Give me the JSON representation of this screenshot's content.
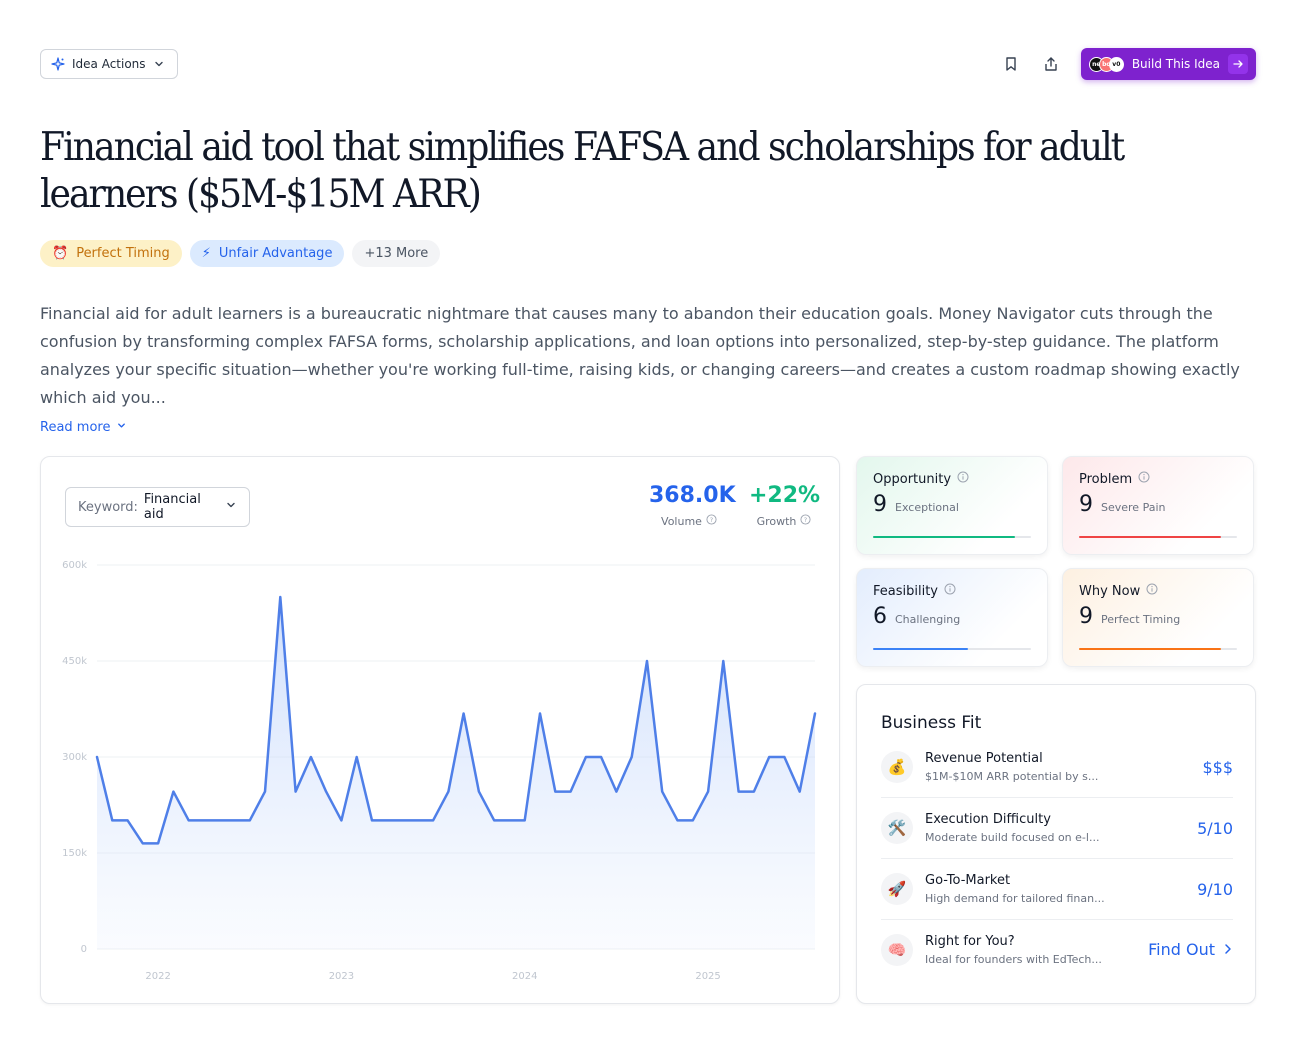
{
  "toolbar": {
    "idea_actions_label": "Idea Actions",
    "build_label": "Build This Idea",
    "build_logos": [
      "ne",
      "bo",
      "v0"
    ]
  },
  "title": "Financial aid tool that simplifies FAFSA and scholarships for adult learners ($5M-$15M ARR)",
  "tags": [
    {
      "icon": "⏰",
      "label": "Perfect Timing"
    },
    {
      "icon": "⚡",
      "label": "Unfair Advantage"
    },
    {
      "label": "+13 More"
    }
  ],
  "description": "Financial aid for adult learners is a bureaucratic nightmare that causes many to abandon their education goals. Money Navigator cuts through the confusion by transforming complex FAFSA forms, scholarship applications, and loan options into personalized, step-by-step guidance. The platform analyzes your specific situation—whether you're working full-time, raising kids, or changing careers—and creates a custom roadmap showing exactly which aid you...",
  "read_more": "Read more",
  "keyword": {
    "label": "Keyword:",
    "value": "Financial aid"
  },
  "stats": {
    "volume": {
      "value": "368.0K",
      "label": "Volume"
    },
    "growth": {
      "value": "+22%",
      "label": "Growth"
    }
  },
  "chart_data": {
    "type": "area",
    "title": "",
    "xlabel": "",
    "ylabel": "",
    "y_ticks": [
      "0",
      "150k",
      "300k",
      "450k",
      "600k"
    ],
    "ylim": [
      0,
      600000
    ],
    "x_ticks": [
      "2022",
      "2023",
      "2024",
      "2025"
    ],
    "x_tick_positions": [
      4,
      16,
      28,
      40
    ],
    "series": [
      {
        "values": [
          300000,
          201000,
          201000,
          165000,
          165000,
          246000,
          201000,
          201000,
          201000,
          201000,
          201000,
          246000,
          550000,
          246000,
          300000,
          246000,
          201000,
          300000,
          201000,
          201000,
          201000,
          201000,
          201000,
          246000,
          368000,
          246000,
          201000,
          201000,
          201000,
          368000,
          246000,
          246000,
          300000,
          300000,
          246000,
          300000,
          450000,
          246000,
          201000,
          201000,
          246000,
          450000,
          246000,
          246000,
          300000,
          300000,
          246000,
          368000
        ],
        "color": "#4f7fe8"
      }
    ],
    "grid": true
  },
  "scores": {
    "opportunity": {
      "title": "Opportunity",
      "value": "9",
      "word": "Exceptional",
      "fraction": 0.9,
      "color": "#10b981"
    },
    "problem": {
      "title": "Problem",
      "value": "9",
      "word": "Severe Pain",
      "fraction": 0.9,
      "color": "#ef4444"
    },
    "feasibility": {
      "title": "Feasibility",
      "value": "6",
      "word": "Challenging",
      "fraction": 0.6,
      "color": "#3b82f6"
    },
    "why_now": {
      "title": "Why Now",
      "value": "9",
      "word": "Perfect Timing",
      "fraction": 0.9,
      "color": "#f97316"
    }
  },
  "business_fit": {
    "title": "Business Fit",
    "rows": [
      {
        "icon": "💰",
        "name": "Revenue Potential",
        "sub": "$1M-$10M ARR potential by s...",
        "value": "$$$"
      },
      {
        "icon": "🛠️",
        "name": "Execution Difficulty",
        "sub": "Moderate build focused on e-l...",
        "value": "5/10"
      },
      {
        "icon": "🚀",
        "name": "Go-To-Market",
        "sub": "High demand for tailored finan...",
        "value": "9/10"
      },
      {
        "icon": "🧠",
        "name": "Right for You?",
        "sub": "Ideal for founders with EdTech...",
        "value": "Find Out"
      }
    ]
  }
}
